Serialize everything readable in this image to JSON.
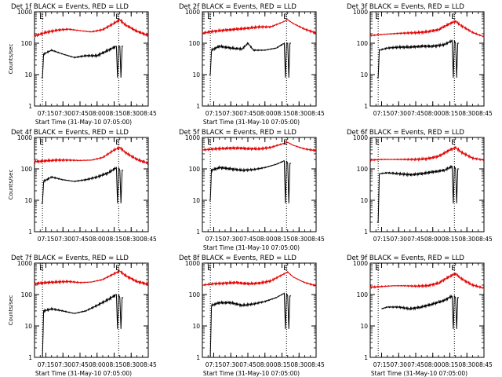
{
  "chart_data": [
    {
      "title": "Det 1f BLACK = Events, RED = LLD",
      "type": "line",
      "ylabel": "Counts/sec",
      "xlabel": "Start Time (31-May-10 07:05:00)",
      "y_scale": "log",
      "ylim": [
        1,
        1000
      ],
      "y_ticks": [
        "1",
        "10",
        "100",
        "1000"
      ],
      "x_ticks": [
        "07:15",
        "07:30",
        "07:45",
        "08:00",
        "08:15",
        "08:30",
        "08:45"
      ],
      "dotted_vlines": [
        "07:12",
        "08:19"
      ],
      "marker_labels": [
        "E",
        "E"
      ],
      "grid": false,
      "series": [
        {
          "color": "#e00000",
          "x": [
            "07:05",
            "07:15",
            "07:25",
            "07:35",
            "07:45",
            "07:55",
            "08:05",
            "08:15",
            "08:20",
            "08:25",
            "08:35",
            "08:45"
          ],
          "values": [
            170,
            220,
            260,
            280,
            250,
            230,
            270,
            430,
            560,
            380,
            240,
            175
          ]
        },
        {
          "color": "#000000",
          "x": [
            "07:11",
            "07:12",
            "07:13",
            "07:20",
            "07:30",
            "07:40",
            "07:50",
            "08:00",
            "08:10",
            "08:17",
            "08:18",
            "08:19",
            "08:20",
            "08:21",
            "08:22",
            "08:23"
          ],
          "values": [
            8,
            8,
            45,
            60,
            45,
            35,
            40,
            40,
            60,
            80,
            8,
            80,
            80,
            8,
            80,
            80
          ]
        }
      ]
    },
    {
      "title": "Det 2f BLACK = Events, RED = LLD",
      "type": "line",
      "ylabel": "",
      "xlabel": "Start Time (31-May-10 07:05:00)",
      "y_scale": "log",
      "ylim": [
        1,
        1000
      ],
      "y_ticks": [
        "1",
        "10",
        "100",
        "1000"
      ],
      "x_ticks": [
        "07:15",
        "07:30",
        "07:45",
        "08:00",
        "08:15",
        "08:30",
        "08:45"
      ],
      "dotted_vlines": [
        "07:12",
        "08:19"
      ],
      "marker_labels": [
        "E",
        "E"
      ],
      "grid": false,
      "series": [
        {
          "color": "#e00000",
          "x": [
            "07:05",
            "07:15",
            "07:25",
            "07:35",
            "07:45",
            "07:55",
            "08:05",
            "08:15",
            "08:20",
            "08:25",
            "08:35",
            "08:45"
          ],
          "values": [
            210,
            240,
            260,
            280,
            300,
            330,
            330,
            460,
            560,
            420,
            280,
            210
          ]
        },
        {
          "color": "#000000",
          "x": [
            "07:11",
            "07:12",
            "07:13",
            "07:20",
            "07:30",
            "07:40",
            "07:45",
            "07:50",
            "08:00",
            "08:10",
            "08:17",
            "08:18",
            "08:19",
            "08:20",
            "08:21",
            "08:22",
            "08:23"
          ],
          "values": [
            10,
            10,
            60,
            80,
            70,
            65,
            100,
            60,
            60,
            70,
            100,
            8,
            100,
            100,
            8,
            100,
            100
          ]
        }
      ]
    },
    {
      "title": "Det 3f BLACK = Events, RED = LLD",
      "type": "line",
      "ylabel": "",
      "xlabel": "",
      "y_scale": "log",
      "ylim": [
        1,
        1000
      ],
      "y_ticks": [
        "1",
        "10",
        "100",
        "1000"
      ],
      "x_ticks": [
        "07:15",
        "07:30",
        "07:45",
        "08:00",
        "08:15",
        "08:30",
        "08:45"
      ],
      "dotted_vlines": [
        "07:12",
        "08:19"
      ],
      "marker_labels": [
        "E",
        "E"
      ],
      "grid": false,
      "series": [
        {
          "color": "#e00000",
          "x": [
            "07:05",
            "07:15",
            "07:25",
            "07:35",
            "07:45",
            "07:55",
            "08:05",
            "08:15",
            "08:20",
            "08:25",
            "08:35",
            "08:45"
          ],
          "values": [
            175,
            190,
            200,
            210,
            215,
            230,
            270,
            420,
            500,
            360,
            220,
            160
          ]
        },
        {
          "color": "#000000",
          "x": [
            "07:11",
            "07:12",
            "07:13",
            "07:20",
            "07:30",
            "07:40",
            "07:50",
            "08:00",
            "08:10",
            "08:17",
            "08:18",
            "08:19",
            "08:20",
            "08:21",
            "08:22",
            "08:23"
          ],
          "values": [
            8,
            8,
            60,
            70,
            75,
            75,
            80,
            80,
            90,
            120,
            8,
            120,
            100,
            8,
            100,
            100
          ]
        }
      ]
    },
    {
      "title": "Det 4f BLACK = Events, RED = LLD",
      "type": "line",
      "ylabel": "Counts/sec",
      "xlabel": "",
      "y_scale": "log",
      "ylim": [
        1,
        1000
      ],
      "y_ticks": [
        "1",
        "10",
        "100",
        "1000"
      ],
      "x_ticks": [
        "07:15",
        "07:30",
        "07:45",
        "08:00",
        "08:15",
        "08:30",
        "08:45"
      ],
      "dotted_vlines": [
        "07:12",
        "08:19"
      ],
      "marker_labels": [
        "E",
        "E"
      ],
      "grid": false,
      "series": [
        {
          "color": "#e00000",
          "x": [
            "07:05",
            "07:15",
            "07:25",
            "07:35",
            "07:45",
            "07:55",
            "08:05",
            "08:15",
            "08:20",
            "08:25",
            "08:35",
            "08:45"
          ],
          "values": [
            170,
            180,
            190,
            190,
            185,
            190,
            230,
            400,
            480,
            330,
            200,
            150
          ]
        },
        {
          "color": "#000000",
          "x": [
            "07:11",
            "07:12",
            "07:13",
            "07:20",
            "07:30",
            "07:40",
            "07:50",
            "08:00",
            "08:10",
            "08:17",
            "08:18",
            "08:19",
            "08:20",
            "08:21",
            "08:22",
            "08:23"
          ],
          "values": [
            8,
            8,
            40,
            55,
            45,
            40,
            45,
            55,
            75,
            110,
            8,
            110,
            90,
            8,
            90,
            90
          ]
        }
      ]
    },
    {
      "title": "Det 5f BLACK = Events, RED = LLD",
      "type": "line",
      "ylabel": "",
      "xlabel": "Start Time (31-May-10 07:05:00)",
      "y_scale": "log",
      "ylim": [
        1,
        1000
      ],
      "y_ticks": [
        "1",
        "10",
        "100",
        "1000"
      ],
      "x_ticks": [
        "07:15",
        "07:30",
        "07:45",
        "08:00",
        "08:15",
        "08:30",
        "08:45"
      ],
      "dotted_vlines": [
        "07:12",
        "08:19"
      ],
      "marker_labels": [
        "E",
        "E"
      ],
      "grid": false,
      "series": [
        {
          "color": "#e00000",
          "x": [
            "07:05",
            "07:15",
            "07:25",
            "07:35",
            "07:45",
            "07:55",
            "08:05",
            "08:15",
            "08:20",
            "08:25",
            "08:35",
            "08:45"
          ],
          "values": [
            400,
            430,
            450,
            460,
            440,
            430,
            480,
            620,
            700,
            560,
            430,
            380
          ]
        },
        {
          "color": "#000000",
          "x": [
            "07:11",
            "07:12",
            "07:13",
            "07:20",
            "07:30",
            "07:40",
            "07:50",
            "08:00",
            "08:10",
            "08:17",
            "08:18",
            "08:19",
            "08:20",
            "08:21",
            "08:22",
            "08:23"
          ],
          "values": [
            10,
            10,
            90,
            110,
            100,
            90,
            95,
            110,
            140,
            180,
            8,
            180,
            150,
            8,
            150,
            150
          ]
        }
      ]
    },
    {
      "title": "Det 6f BLACK = Events, RED = LLD",
      "type": "line",
      "ylabel": "",
      "xlabel": "",
      "y_scale": "log",
      "ylim": [
        1,
        1000
      ],
      "y_ticks": [
        "1",
        "10",
        "100",
        "1000"
      ],
      "x_ticks": [
        "07:15",
        "07:30",
        "07:45",
        "08:00",
        "08:15",
        "08:30",
        "08:45"
      ],
      "dotted_vlines": [
        "07:12",
        "08:19"
      ],
      "marker_labels": [
        "E",
        "E"
      ],
      "grid": false,
      "series": [
        {
          "color": "#e00000",
          "x": [
            "07:05",
            "07:15",
            "07:25",
            "07:35",
            "07:45",
            "07:55",
            "08:05",
            "08:15",
            "08:20",
            "08:25",
            "08:35",
            "08:45"
          ],
          "values": [
            190,
            200,
            200,
            200,
            200,
            210,
            250,
            400,
            480,
            340,
            220,
            190
          ]
        },
        {
          "color": "#000000",
          "x": [
            "07:11",
            "07:12",
            "07:13",
            "07:20",
            "07:30",
            "07:40",
            "07:50",
            "08:00",
            "08:10",
            "08:17",
            "08:18",
            "08:19",
            "08:20",
            "08:21",
            "08:22",
            "08:23"
          ],
          "values": [
            2,
            2,
            70,
            75,
            70,
            65,
            70,
            80,
            90,
            120,
            8,
            120,
            100,
            8,
            100,
            100
          ]
        }
      ]
    },
    {
      "title": "Det 7f BLACK = Events, RED = LLD",
      "type": "line",
      "ylabel": "Counts/sec",
      "xlabel": "Start Time (31-May-10 07:05:00)",
      "y_scale": "log",
      "ylim": [
        1,
        1000
      ],
      "y_ticks": [
        "1",
        "10",
        "100",
        "1000"
      ],
      "x_ticks": [
        "07:15",
        "07:30",
        "07:45",
        "08:00",
        "08:15",
        "08:30",
        "08:45"
      ],
      "dotted_vlines": [
        "07:12",
        "08:19"
      ],
      "marker_labels": [
        "E",
        "E"
      ],
      "grid": false,
      "series": [
        {
          "color": "#e00000",
          "x": [
            "07:05",
            "07:15",
            "07:25",
            "07:35",
            "07:45",
            "07:55",
            "08:05",
            "08:15",
            "08:20",
            "08:25",
            "08:35",
            "08:45"
          ],
          "values": [
            220,
            240,
            250,
            260,
            240,
            250,
            300,
            460,
            560,
            400,
            260,
            210
          ]
        },
        {
          "color": "#000000",
          "x": [
            "07:11",
            "07:12",
            "07:13",
            "07:20",
            "07:30",
            "07:40",
            "07:50",
            "08:00",
            "08:10",
            "08:17",
            "08:18",
            "08:19",
            "08:20",
            "08:21",
            "08:22",
            "08:23"
          ],
          "values": [
            1,
            1,
            30,
            35,
            30,
            25,
            30,
            45,
            70,
            100,
            8,
            100,
            80,
            8,
            80,
            80
          ]
        }
      ]
    },
    {
      "title": "Det 8f BLACK = Events, RED = LLD",
      "type": "line",
      "ylabel": "",
      "xlabel": "Start Time (31-May-10 07:05:00)",
      "y_scale": "log",
      "ylim": [
        1,
        1000
      ],
      "y_ticks": [
        "1",
        "10",
        "100",
        "1000"
      ],
      "x_ticks": [
        "07:15",
        "07:30",
        "07:45",
        "08:00",
        "08:15",
        "08:30",
        "08:45"
      ],
      "dotted_vlines": [
        "07:12",
        "08:19"
      ],
      "marker_labels": [
        "E",
        "E"
      ],
      "grid": false,
      "series": [
        {
          "color": "#e00000",
          "x": [
            "07:05",
            "07:15",
            "07:25",
            "07:35",
            "07:45",
            "07:55",
            "08:05",
            "08:15",
            "08:20",
            "08:25",
            "08:35",
            "08:45"
          ],
          "values": [
            200,
            220,
            230,
            240,
            220,
            230,
            270,
            420,
            520,
            360,
            240,
            190
          ]
        },
        {
          "color": "#000000",
          "x": [
            "07:11",
            "07:12",
            "07:13",
            "07:20",
            "07:30",
            "07:40",
            "07:50",
            "08:00",
            "08:10",
            "08:17",
            "08:18",
            "08:19",
            "08:20",
            "08:21",
            "08:22",
            "08:23"
          ],
          "values": [
            1,
            1,
            45,
            55,
            55,
            45,
            50,
            60,
            80,
            110,
            8,
            110,
            90,
            8,
            90,
            90
          ]
        }
      ]
    },
    {
      "title": "Det 9f BLACK = Events, RED = LLD",
      "type": "line",
      "ylabel": "",
      "xlabel": "Start Time (31-May-10 07:05:00)",
      "y_scale": "log",
      "ylim": [
        1,
        1000
      ],
      "y_ticks": [
        "1",
        "10",
        "100",
        "1000"
      ],
      "x_ticks": [
        "07:15",
        "07:30",
        "07:45",
        "08:00",
        "08:15",
        "08:30",
        "08:45"
      ],
      "dotted_vlines": [
        "07:12",
        "08:19"
      ],
      "marker_labels": [
        "E",
        "E"
      ],
      "grid": false,
      "series": [
        {
          "color": "#e00000",
          "x": [
            "07:05",
            "07:15",
            "07:25",
            "07:35",
            "07:45",
            "07:55",
            "08:05",
            "08:15",
            "08:20",
            "08:25",
            "08:35",
            "08:45"
          ],
          "values": [
            170,
            180,
            190,
            190,
            185,
            190,
            230,
            380,
            460,
            320,
            200,
            160
          ]
        },
        {
          "color": "#000000",
          "x": [
            "07:15",
            "07:20",
            "07:30",
            "07:40",
            "07:50",
            "08:00",
            "08:10",
            "08:17",
            "08:18",
            "08:19",
            "08:20",
            "08:21",
            "08:22",
            "08:23"
          ],
          "values": [
            35,
            40,
            40,
            35,
            40,
            50,
            65,
            90,
            8,
            90,
            80,
            8,
            80,
            80
          ]
        }
      ]
    }
  ]
}
